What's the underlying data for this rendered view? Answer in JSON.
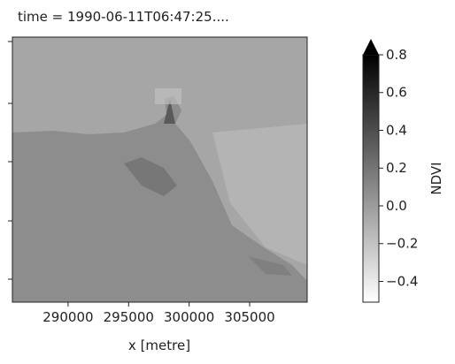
{
  "chart_data": {
    "type": "image",
    "title": "time = 1990-06-11T06:47:25....",
    "xlabel": "x [metre]",
    "xlim": [
      285400,
      309750
    ],
    "xticks": [
      290000,
      295000,
      300000,
      305000
    ],
    "colorbar": {
      "label": "NDVI",
      "colormap": "Greys",
      "lim": [
        -0.51,
        0.8
      ],
      "extend": "max",
      "ticks": [
        {
          "value": 0.8,
          "label": "0.8"
        },
        {
          "value": 0.6,
          "label": "0.6"
        },
        {
          "value": 0.4,
          "label": "0.4"
        },
        {
          "value": 0.2,
          "label": "0.2"
        },
        {
          "value": 0.0,
          "label": "0.0"
        },
        {
          "value": -0.2,
          "label": "−0.2"
        },
        {
          "value": -0.4,
          "label": "−0.4"
        }
      ]
    }
  }
}
